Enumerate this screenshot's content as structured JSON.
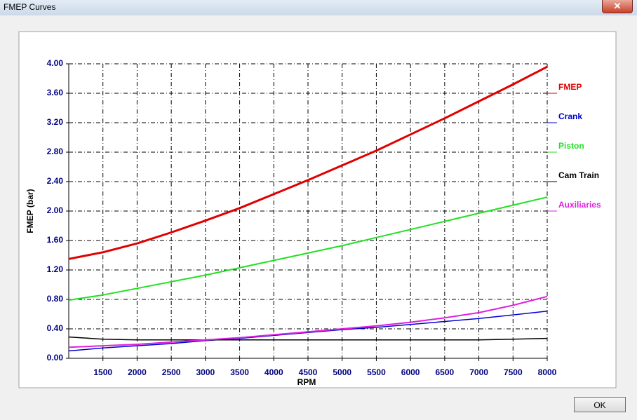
{
  "window": {
    "title": "FMEP Curves",
    "ok_button": "OK"
  },
  "chart_data": {
    "type": "line",
    "x_label": "RPM",
    "y_label": "FMEP (bar)",
    "x": [
      1000,
      1500,
      2000,
      2500,
      3000,
      3500,
      4000,
      4500,
      5000,
      5500,
      6000,
      6500,
      7000,
      7500,
      8000
    ],
    "series": [
      {
        "name": "FMEP",
        "color": "#e00000",
        "width": 3,
        "values": [
          1.35,
          1.44,
          1.56,
          1.71,
          1.87,
          2.04,
          2.23,
          2.42,
          2.62,
          2.82,
          3.04,
          3.26,
          3.49,
          3.72,
          3.96
        ]
      },
      {
        "name": "Crank",
        "color": "#0000d0",
        "width": 1.5,
        "values": [
          0.1,
          0.14,
          0.17,
          0.2,
          0.24,
          0.27,
          0.31,
          0.35,
          0.39,
          0.42,
          0.46,
          0.5,
          0.54,
          0.59,
          0.64
        ]
      },
      {
        "name": "Piston",
        "color": "#22e022",
        "width": 2,
        "values": [
          0.79,
          0.86,
          0.95,
          1.04,
          1.13,
          1.23,
          1.33,
          1.43,
          1.53,
          1.64,
          1.75,
          1.86,
          1.97,
          2.08,
          2.19
        ]
      },
      {
        "name": "Cam Train",
        "color": "#000000",
        "width": 1.5,
        "values": [
          0.29,
          0.26,
          0.25,
          0.25,
          0.25,
          0.25,
          0.25,
          0.25,
          0.25,
          0.25,
          0.25,
          0.25,
          0.25,
          0.26,
          0.27
        ]
      },
      {
        "name": "Auxiliaries",
        "color": "#e020e0",
        "width": 2,
        "values": [
          0.15,
          0.17,
          0.19,
          0.22,
          0.25,
          0.28,
          0.32,
          0.36,
          0.4,
          0.44,
          0.49,
          0.55,
          0.62,
          0.72,
          0.84
        ]
      }
    ],
    "xlim": [
      1000,
      8000
    ],
    "xticks": [
      1500,
      2000,
      2500,
      3000,
      3500,
      4000,
      4500,
      5000,
      5500,
      6000,
      6500,
      7000,
      7500,
      8000
    ],
    "ylim": [
      0,
      4
    ],
    "yticks": [
      {
        "value": 0,
        "label": "0.00"
      },
      {
        "value": 0.4,
        "label": "0.40"
      },
      {
        "value": 0.8,
        "label": "0.80"
      },
      {
        "value": 1.2,
        "label": "1.20"
      },
      {
        "value": 1.6,
        "label": "1.60"
      },
      {
        "value": 2,
        "label": "2.00"
      },
      {
        "value": 2.4,
        "label": "2.40"
      },
      {
        "value": 2.8,
        "label": "2.80"
      },
      {
        "value": 3.2,
        "label": "3.20"
      },
      {
        "value": 3.6,
        "label": "3.60"
      },
      {
        "value": 4,
        "label": "4.00"
      }
    ],
    "grid": true,
    "legend": "right"
  }
}
